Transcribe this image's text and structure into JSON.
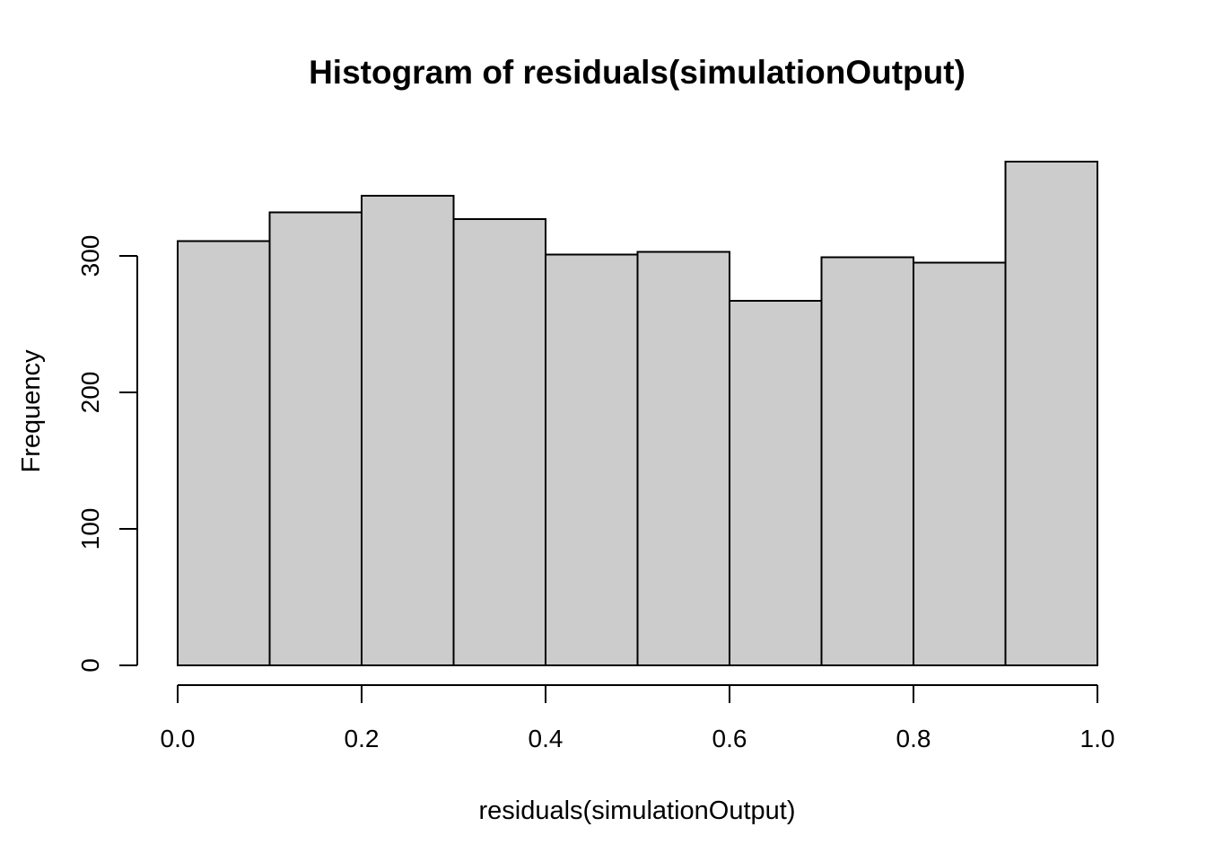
{
  "page": {
    "background": "#FFFFFF"
  },
  "chart_data": {
    "type": "bar",
    "subtype": "histogram",
    "title": "Histogram of residuals(simulationOutput)",
    "xlabel": "residuals(simulationOutput)",
    "ylabel": "Frequency",
    "bin_edges": [
      0.0,
      0.1,
      0.2,
      0.3,
      0.4,
      0.5,
      0.6,
      0.7,
      0.8,
      0.9,
      1.0
    ],
    "values": [
      311,
      332,
      344,
      327,
      301,
      303,
      267,
      299,
      295,
      369
    ],
    "x_ticks": {
      "values": [
        0.0,
        0.2,
        0.4,
        0.6,
        0.8,
        1.0
      ],
      "labels": [
        "0.0",
        "0.2",
        "0.4",
        "0.6",
        "0.8",
        "1.0"
      ]
    },
    "y_ticks": {
      "values": [
        0,
        100,
        200,
        300
      ],
      "labels": [
        "0",
        "100",
        "200",
        "300"
      ]
    },
    "xlim": [
      0.0,
      1.0
    ],
    "ylim": [
      0,
      370
    ],
    "grid": false,
    "legend": null,
    "style": "r-base-graphics",
    "colors": {
      "bar_fill": "#CCCCCC",
      "bar_stroke": "#000000",
      "axis": "#000000",
      "text": "#000000",
      "background": "#FFFFFF"
    }
  }
}
